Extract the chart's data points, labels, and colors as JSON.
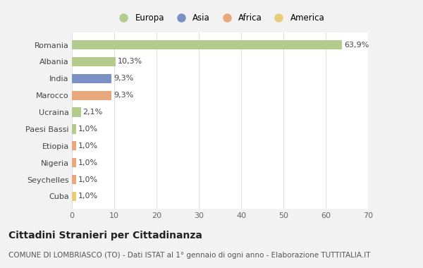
{
  "countries": [
    "Romania",
    "Albania",
    "India",
    "Marocco",
    "Ucraina",
    "Paesi Bassi",
    "Etiopia",
    "Nigeria",
    "Seychelles",
    "Cuba"
  ],
  "values": [
    63.9,
    10.3,
    9.3,
    9.3,
    2.1,
    1.0,
    1.0,
    1.0,
    1.0,
    1.0
  ],
  "labels": [
    "63,9%",
    "10,3%",
    "9,3%",
    "9,3%",
    "2,1%",
    "1,0%",
    "1,0%",
    "1,0%",
    "1,0%",
    "1,0%"
  ],
  "colors": [
    "#b5ca8d",
    "#b5ca8d",
    "#7b90c4",
    "#e8a87c",
    "#b5ca8d",
    "#b5ca8d",
    "#e8a87c",
    "#e8a87c",
    "#e8a87c",
    "#e8cc7a"
  ],
  "legend_labels": [
    "Europa",
    "Asia",
    "Africa",
    "America"
  ],
  "legend_colors": [
    "#b5ca8d",
    "#7b90c4",
    "#e8a87c",
    "#e8cc7a"
  ],
  "title": "Cittadini Stranieri per Cittadinanza",
  "subtitle": "COMUNE DI LOMBRIASCO (TO) - Dati ISTAT al 1° gennaio di ogni anno - Elaborazione TUTTITALIA.IT",
  "xlim": [
    0,
    70
  ],
  "xticks": [
    0,
    10,
    20,
    30,
    40,
    50,
    60,
    70
  ],
  "background_color": "#f2f2f2",
  "bar_background": "#ffffff",
  "grid_color": "#dddddd",
  "title_fontsize": 10,
  "subtitle_fontsize": 7.5,
  "label_fontsize": 8,
  "tick_fontsize": 8,
  "legend_fontsize": 8.5
}
